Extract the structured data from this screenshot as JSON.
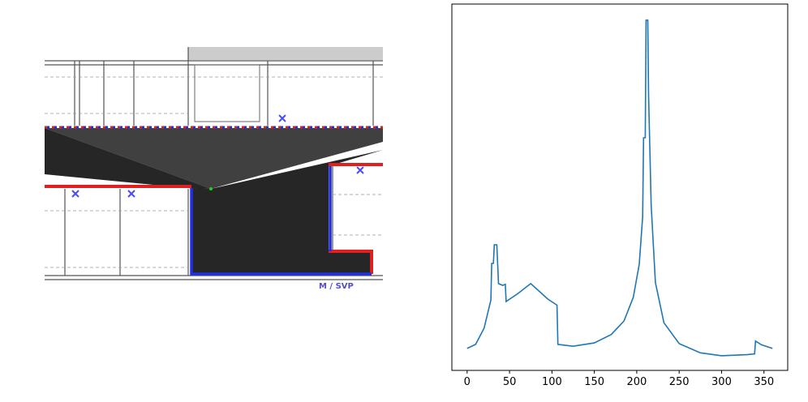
{
  "floor_plan": {
    "label": "M / SVP"
  },
  "chart_data": {
    "type": "line",
    "color": "#1f77b4",
    "x": [
      0,
      10,
      20,
      28,
      29,
      31,
      32,
      35,
      37,
      42,
      45,
      46,
      60,
      75,
      85,
      95,
      106,
      107,
      125,
      150,
      170,
      185,
      196,
      203,
      207,
      208,
      210,
      211,
      213,
      214,
      217,
      222,
      232,
      250,
      275,
      300,
      330,
      339,
      340,
      347,
      360
    ],
    "values": [
      6,
      7.1,
      11.5,
      19.2,
      29.2,
      29.2,
      34.3,
      34.3,
      23.7,
      23.2,
      23.5,
      18.8,
      21,
      23.7,
      21.6,
      19.5,
      17.8,
      7.1,
      6.6,
      7.5,
      9.8,
      13.5,
      20,
      29,
      42,
      63.5,
      63.5,
      95.6,
      95.6,
      75,
      45,
      24,
      13,
      7.3,
      4.8,
      4,
      4.3,
      4.5,
      8,
      7,
      6
    ],
    "xlim": [
      -18,
      378
    ],
    "ylim": [
      0,
      100
    ],
    "xticks": [
      0,
      50,
      100,
      150,
      200,
      250,
      300,
      350
    ]
  }
}
